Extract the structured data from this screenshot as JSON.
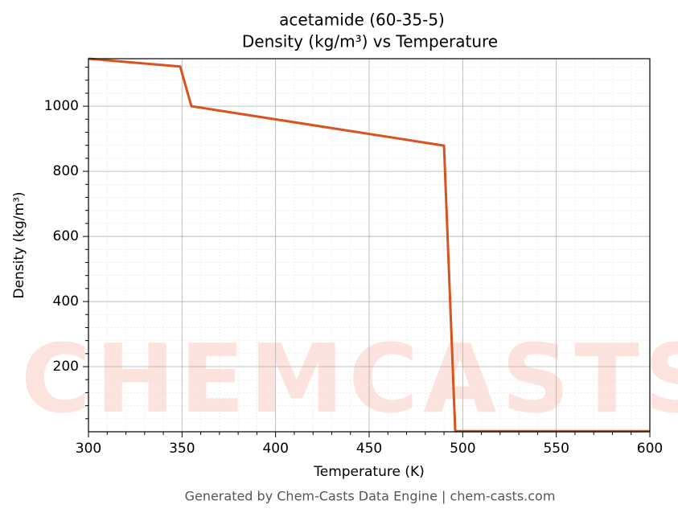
{
  "chart_data": {
    "type": "line",
    "title": "acetamide (60-35-5)",
    "subtitle": "Density (kg/m³) vs Temperature",
    "x_label": "Temperature (K)",
    "y_label": "Density (kg/m³)",
    "footer": "Generated by Chem-Casts Data Engine | chem-casts.com",
    "watermark": "CHEMCASTS",
    "x": [
      300,
      349,
      355,
      490,
      496,
      600
    ],
    "series": [
      {
        "name": "Density",
        "color": "#d9531e",
        "values": [
          1146,
          1122,
          1000,
          879,
          2,
          2
        ]
      }
    ],
    "xlim": [
      300,
      600
    ],
    "ylim": [
      0,
      1146
    ],
    "xticks": [
      300,
      350,
      400,
      450,
      500,
      550,
      600
    ],
    "yticks": [
      200,
      400,
      600,
      800,
      1000
    ],
    "xminorticks": [
      310,
      320,
      330,
      340,
      360,
      370,
      380,
      390,
      410,
      420,
      430,
      440,
      460,
      470,
      480,
      490,
      510,
      520,
      530,
      540,
      560,
      570,
      580,
      590
    ],
    "yminorticks": [
      40,
      80,
      120,
      160,
      240,
      280,
      320,
      360,
      440,
      480,
      520,
      560,
      640,
      680,
      720,
      760,
      840,
      880,
      920,
      960,
      1040,
      1080,
      1120
    ],
    "grid": true
  }
}
